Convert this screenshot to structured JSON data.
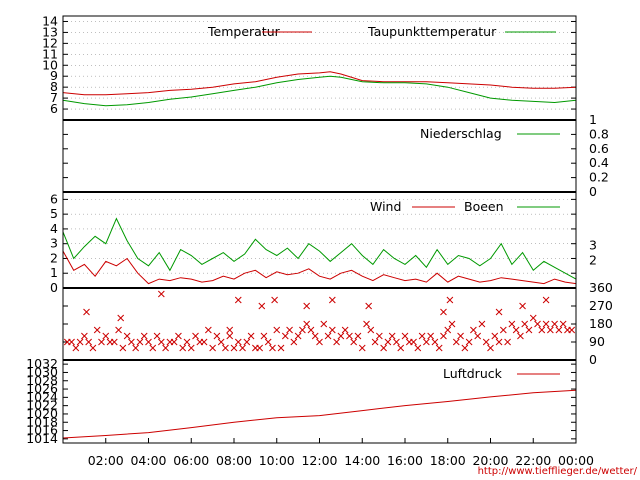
{
  "colors": {
    "primary": "#cc0000",
    "secondary": "#009900",
    "axis": "#000000"
  },
  "time_axis": {
    "start_hour": 0,
    "end_hour": 24,
    "tick_labels": [
      "02:00",
      "04:00",
      "06:00",
      "08:00",
      "10:00",
      "12:00",
      "14:00",
      "16:00",
      "18:00",
      "20:00",
      "22:00",
      "00:00"
    ]
  },
  "footer": {
    "url": "http://www.tiefflieger.de/wetter/"
  },
  "chart_data": [
    {
      "type": "line",
      "ylim": [
        5,
        14.5
      ],
      "yticks": [
        6,
        7,
        8,
        9,
        10,
        11,
        12,
        13,
        14
      ],
      "yaxis_side": "left",
      "grid": true,
      "series": [
        {
          "name": "Temperatur",
          "color": "#cc0000",
          "x": [
            0,
            1,
            2,
            3,
            4,
            5,
            6,
            7,
            8,
            9,
            10,
            11,
            12,
            12.5,
            13,
            14,
            15,
            16,
            17,
            18,
            19,
            20,
            21,
            22,
            23,
            24
          ],
          "y": [
            7.5,
            7.3,
            7.3,
            7.4,
            7.5,
            7.7,
            7.8,
            8.0,
            8.3,
            8.5,
            8.9,
            9.2,
            9.3,
            9.4,
            9.2,
            8.6,
            8.5,
            8.5,
            8.5,
            8.4,
            8.3,
            8.2,
            8.0,
            7.9,
            7.9,
            8.0
          ]
        },
        {
          "name": "Taupunkttemperatur",
          "color": "#009900",
          "x": [
            0,
            1,
            2,
            3,
            4,
            5,
            6,
            7,
            8,
            9,
            10,
            11,
            12,
            12.5,
            13,
            14,
            15,
            16,
            17,
            18,
            19,
            20,
            21,
            22,
            23,
            24
          ],
          "y": [
            6.8,
            6.5,
            6.3,
            6.4,
            6.6,
            6.9,
            7.1,
            7.4,
            7.7,
            8.0,
            8.4,
            8.7,
            8.9,
            9.0,
            8.9,
            8.5,
            8.4,
            8.4,
            8.3,
            8.0,
            7.5,
            7.0,
            6.8,
            6.7,
            6.6,
            6.8
          ]
        }
      ]
    },
    {
      "type": "line",
      "ylim": [
        0,
        1
      ],
      "yticks": [
        0,
        0.2,
        0.4,
        0.6,
        0.8,
        1
      ],
      "ytick_labels": [
        "0",
        "0.2",
        "0.4",
        "0.6",
        "0.8",
        "1"
      ],
      "yaxis_side": "right",
      "grid": false,
      "series": [
        {
          "name": "Niederschlag",
          "color": "#009900",
          "x": [
            0,
            24
          ],
          "y": [
            0,
            0
          ]
        }
      ]
    },
    {
      "type": "line",
      "ylim": [
        0,
        6.5
      ],
      "yticks": [
        0,
        1,
        2,
        3,
        4,
        5,
        6
      ],
      "yaxis_side": "left",
      "right_ticks": [
        2,
        3
      ],
      "grid": true,
      "series": [
        {
          "name": "Wind",
          "color": "#cc0000",
          "x": [
            0,
            0.5,
            1,
            1.5,
            2,
            2.5,
            3,
            3.5,
            4,
            4.5,
            5,
            5.5,
            6,
            6.5,
            7,
            7.5,
            8,
            8.5,
            9,
            9.5,
            10,
            10.5,
            11,
            11.5,
            12,
            12.5,
            13,
            13.5,
            14,
            14.5,
            15,
            15.5,
            16,
            16.5,
            17,
            17.5,
            18,
            18.5,
            19,
            19.5,
            20,
            20.5,
            21,
            21.5,
            22,
            22.5,
            23,
            23.5,
            24
          ],
          "y": [
            2.5,
            1.2,
            1.6,
            0.8,
            1.8,
            1.5,
            2.0,
            1.0,
            0.3,
            0.6,
            0.5,
            0.7,
            0.6,
            0.4,
            0.5,
            0.8,
            0.6,
            1.0,
            1.2,
            0.7,
            1.1,
            0.9,
            1.0,
            1.3,
            0.8,
            0.6,
            1.0,
            1.2,
            0.8,
            0.5,
            0.9,
            0.7,
            0.5,
            0.6,
            0.4,
            1.0,
            0.4,
            0.8,
            0.6,
            0.4,
            0.5,
            0.7,
            0.6,
            0.5,
            0.4,
            0.3,
            0.6,
            0.4,
            0.3
          ]
        },
        {
          "name": "Boeen",
          "color": "#009900",
          "x": [
            0,
            0.5,
            1,
            1.5,
            2,
            2.5,
            3,
            3.5,
            4,
            4.5,
            5,
            5.5,
            6,
            6.5,
            7,
            7.5,
            8,
            8.5,
            9,
            9.5,
            10,
            10.5,
            11,
            11.5,
            12,
            12.5,
            13,
            13.5,
            14,
            14.5,
            15,
            15.5,
            16,
            16.5,
            17,
            17.5,
            18,
            18.5,
            19,
            19.5,
            20,
            20.5,
            21,
            21.5,
            22,
            22.5,
            23,
            23.5,
            24
          ],
          "y": [
            3.8,
            2.0,
            2.8,
            3.5,
            3.0,
            4.7,
            3.2,
            2.0,
            1.5,
            2.4,
            1.2,
            2.6,
            2.2,
            1.6,
            2.0,
            2.4,
            1.8,
            2.3,
            3.3,
            2.6,
            2.2,
            2.7,
            2.0,
            3.0,
            2.5,
            1.8,
            2.4,
            3.0,
            2.2,
            1.6,
            2.6,
            2.0,
            1.6,
            2.2,
            1.4,
            2.6,
            1.6,
            2.2,
            2.0,
            1.5,
            2.0,
            3.0,
            1.6,
            2.4,
            1.2,
            1.8,
            1.4,
            1.0,
            0.6
          ]
        }
      ]
    },
    {
      "type": "scatter",
      "ylim": [
        0,
        360
      ],
      "yticks": [
        0,
        90,
        180,
        270,
        360
      ],
      "yaxis_side": "right",
      "grid": false,
      "series": [
        {
          "name": "",
          "color": "#cc0000",
          "marker": "x",
          "x": [
            0.2,
            0.4,
            0.6,
            0.8,
            1.0,
            1.2,
            1.4,
            1.6,
            1.8,
            2.0,
            2.2,
            2.4,
            2.6,
            2.8,
            3.0,
            3.2,
            3.4,
            3.6,
            3.8,
            4.0,
            4.2,
            4.4,
            4.6,
            4.8,
            5.0,
            5.2,
            5.4,
            5.6,
            5.8,
            6.0,
            6.2,
            6.4,
            6.6,
            6.8,
            7.0,
            7.2,
            7.4,
            7.6,
            7.8,
            8.0,
            8.2,
            8.4,
            8.6,
            8.8,
            9.0,
            9.2,
            9.4,
            9.6,
            9.8,
            10.0,
            10.2,
            10.4,
            10.6,
            10.8,
            11.0,
            11.2,
            11.4,
            11.6,
            11.8,
            12.0,
            12.2,
            12.4,
            12.6,
            12.8,
            13.0,
            13.2,
            13.4,
            13.6,
            13.8,
            14.0,
            14.2,
            14.4,
            14.6,
            14.8,
            15.0,
            15.2,
            15.4,
            15.6,
            15.8,
            16.0,
            16.2,
            16.4,
            16.6,
            16.8,
            17.0,
            17.2,
            17.4,
            17.6,
            17.8,
            18.0,
            18.2,
            18.4,
            18.6,
            18.8,
            19.0,
            19.2,
            19.4,
            19.6,
            19.8,
            20.0,
            20.2,
            20.4,
            20.6,
            20.8,
            21.0,
            21.2,
            21.4,
            21.6,
            21.8,
            22.0,
            22.2,
            22.4,
            22.6,
            22.8,
            23.0,
            23.2,
            23.4,
            23.6,
            23.8,
            1.1,
            2.7,
            4.6,
            7.8,
            8.2,
            9.3,
            9.9,
            11.4,
            12.6,
            14.3,
            17.8,
            18.1,
            20.4,
            21.5,
            22.6
          ],
          "y": [
            90,
            90,
            60,
            90,
            120,
            90,
            60,
            150,
            90,
            120,
            90,
            90,
            150,
            60,
            120,
            90,
            60,
            90,
            120,
            90,
            60,
            120,
            90,
            60,
            90,
            90,
            120,
            60,
            90,
            60,
            120,
            90,
            90,
            150,
            60,
            120,
            90,
            60,
            120,
            60,
            90,
            60,
            90,
            120,
            60,
            60,
            120,
            90,
            60,
            150,
            60,
            120,
            150,
            90,
            120,
            150,
            180,
            150,
            120,
            90,
            180,
            120,
            150,
            90,
            120,
            150,
            120,
            90,
            120,
            60,
            180,
            150,
            90,
            120,
            60,
            90,
            120,
            90,
            60,
            120,
            90,
            90,
            60,
            120,
            90,
            120,
            90,
            60,
            120,
            150,
            180,
            90,
            120,
            60,
            90,
            150,
            120,
            180,
            90,
            60,
            120,
            90,
            150,
            90,
            180,
            150,
            120,
            180,
            150,
            210,
            180,
            150,
            180,
            150,
            180,
            150,
            180,
            150,
            150,
            240,
            210,
            330,
            150,
            300,
            270,
            300,
            270,
            300,
            270,
            240,
            300,
            240,
            270,
            300
          ]
        }
      ]
    },
    {
      "type": "line",
      "ylim": [
        1013,
        1033
      ],
      "yticks": [
        1014,
        1016,
        1018,
        1020,
        1022,
        1024,
        1026,
        1028,
        1030,
        1032
      ],
      "yaxis_side": "left",
      "grid": false,
      "series": [
        {
          "name": "Luftdruck",
          "color": "#cc0000",
          "x": [
            0,
            2,
            4,
            6,
            8,
            10,
            12,
            14,
            16,
            18,
            20,
            22,
            24
          ],
          "y": [
            1014.2,
            1014.8,
            1015.5,
            1016.7,
            1018.0,
            1019.1,
            1019.6,
            1020.8,
            1022.0,
            1023.0,
            1024.1,
            1025.1,
            1025.7
          ]
        }
      ]
    }
  ]
}
